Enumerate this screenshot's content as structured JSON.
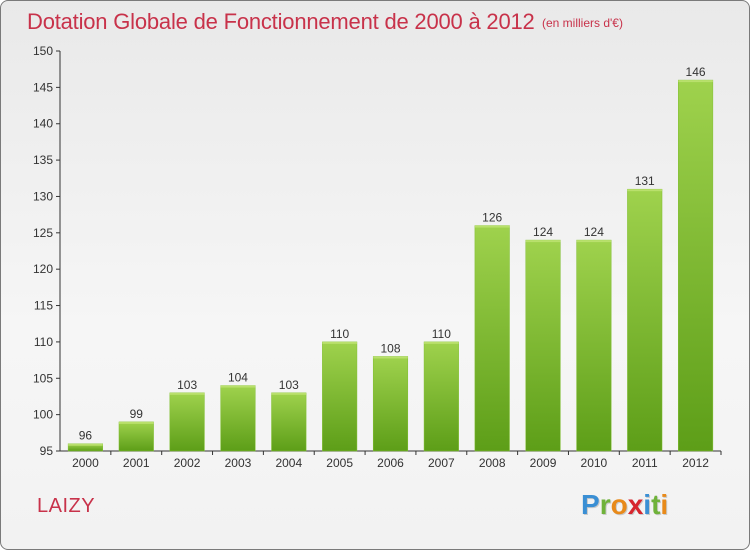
{
  "title": "Dotation Globale de Fonctionnement de 2000 à 2012",
  "subtitle": "(en milliers d'€)",
  "commune": "LAIZY",
  "logo": {
    "letters": [
      {
        "char": "P",
        "color": "#3a8fd4"
      },
      {
        "char": "r",
        "color": "#6fb23a"
      },
      {
        "char": "o",
        "color": "#e88a1a"
      },
      {
        "char": "x",
        "color": "#d7262e"
      },
      {
        "char": "i",
        "color": "#3a8fd4"
      },
      {
        "char": "t",
        "color": "#6fb23a"
      },
      {
        "char": "i",
        "color": "#e88a1a"
      }
    ]
  },
  "colors": {
    "title": "#c8324a",
    "bar_top": "#9fd24d",
    "bar_bottom": "#5d9e18",
    "axis": "#333333",
    "grid": "#cfcfcf"
  },
  "chart_data": {
    "type": "bar",
    "title": "Dotation Globale de Fonctionnement de 2000 à 2012",
    "subtitle": "(en milliers d'€)",
    "categories": [
      "2000",
      "2001",
      "2002",
      "2003",
      "2004",
      "2005",
      "2006",
      "2007",
      "2008",
      "2009",
      "2010",
      "2011",
      "2012"
    ],
    "values": [
      96,
      99,
      103,
      104,
      103,
      110,
      108,
      110,
      126,
      124,
      124,
      131,
      146
    ],
    "ylim": [
      95,
      150
    ],
    "yticks": [
      95,
      100,
      105,
      110,
      115,
      120,
      125,
      130,
      135,
      140,
      145,
      150
    ],
    "xlabel": "",
    "ylabel": "",
    "grid": false,
    "data_labels": true
  }
}
